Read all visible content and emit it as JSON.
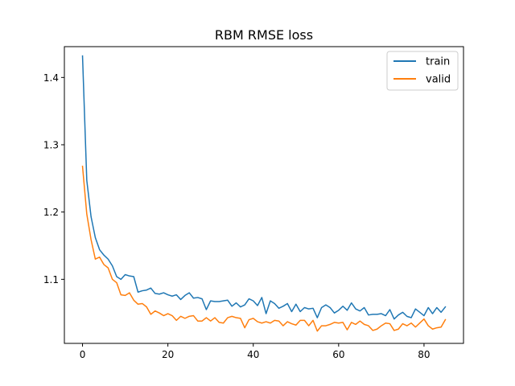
{
  "chart_data": {
    "type": "line",
    "title": "RBM RMSE loss",
    "xlabel": "",
    "ylabel": "",
    "xlim": [
      -4.25,
      89.25
    ],
    "ylim": [
      1.0048,
      1.4458
    ],
    "x_ticks": [
      0,
      20,
      40,
      60,
      80
    ],
    "y_ticks": [
      1.1,
      1.2,
      1.3,
      1.4
    ],
    "grid": false,
    "legend_position": "top-right",
    "series": [
      {
        "name": "train",
        "color": "#1f77b4",
        "values": [
          1.432,
          1.247,
          1.193,
          1.162,
          1.144,
          1.136,
          1.13,
          1.12,
          1.104,
          1.1,
          1.107,
          1.105,
          1.104,
          1.081,
          1.083,
          1.084,
          1.087,
          1.079,
          1.078,
          1.08,
          1.077,
          1.075,
          1.077,
          1.07,
          1.076,
          1.08,
          1.072,
          1.073,
          1.071,
          1.055,
          1.068,
          1.067,
          1.067,
          1.068,
          1.069,
          1.06,
          1.065,
          1.059,
          1.062,
          1.071,
          1.068,
          1.061,
          1.073,
          1.049,
          1.068,
          1.064,
          1.057,
          1.06,
          1.064,
          1.052,
          1.063,
          1.052,
          1.058,
          1.056,
          1.057,
          1.043,
          1.058,
          1.062,
          1.058,
          1.05,
          1.054,
          1.06,
          1.054,
          1.065,
          1.056,
          1.053,
          1.058,
          1.047,
          1.048,
          1.048,
          1.049,
          1.046,
          1.055,
          1.041,
          1.047,
          1.051,
          1.045,
          1.043,
          1.056,
          1.051,
          1.046,
          1.058,
          1.049,
          1.058,
          1.051,
          1.059
        ]
      },
      {
        "name": "valid",
        "color": "#ff7f0e",
        "values": [
          1.268,
          1.197,
          1.159,
          1.13,
          1.133,
          1.122,
          1.117,
          1.1,
          1.095,
          1.077,
          1.076,
          1.08,
          1.069,
          1.063,
          1.064,
          1.059,
          1.048,
          1.053,
          1.05,
          1.046,
          1.049,
          1.046,
          1.039,
          1.045,
          1.042,
          1.045,
          1.046,
          1.038,
          1.038,
          1.043,
          1.038,
          1.043,
          1.036,
          1.035,
          1.043,
          1.045,
          1.043,
          1.042,
          1.028,
          1.04,
          1.042,
          1.037,
          1.035,
          1.037,
          1.035,
          1.039,
          1.038,
          1.031,
          1.037,
          1.034,
          1.032,
          1.039,
          1.039,
          1.031,
          1.039,
          1.023,
          1.031,
          1.031,
          1.033,
          1.036,
          1.035,
          1.036,
          1.025,
          1.036,
          1.033,
          1.038,
          1.033,
          1.031,
          1.024,
          1.026,
          1.031,
          1.035,
          1.034,
          1.024,
          1.026,
          1.034,
          1.031,
          1.035,
          1.029,
          1.035,
          1.041,
          1.031,
          1.026,
          1.028,
          1.029,
          1.04
        ]
      }
    ]
  }
}
